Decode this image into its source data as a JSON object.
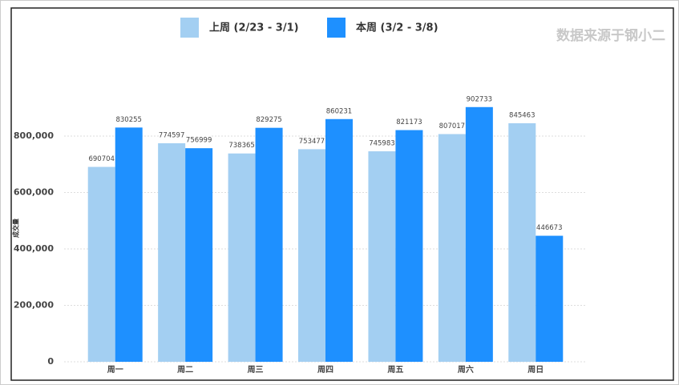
{
  "chart_data": {
    "type": "bar",
    "y_label": "成交量",
    "source": "数据来源于钢小二",
    "categories": [
      "周一",
      "周二",
      "周三",
      "周四",
      "周五",
      "周六",
      "周日"
    ],
    "series": [
      {
        "name": "上周 (2/23 - 3/1)",
        "color": "#a3cff2",
        "values": [
          690704,
          774597,
          738365,
          753477,
          745983,
          807017,
          845463
        ]
      },
      {
        "name": "本周 (3/2 - 3/8)",
        "color": "#1e90ff",
        "values": [
          830255,
          756999,
          829275,
          860231,
          821173,
          902733,
          446673
        ]
      }
    ],
    "ylim": [
      0,
      1000000
    ],
    "yticks": [
      {
        "value": 0,
        "label": "0"
      },
      {
        "value": 200000,
        "label": "200,000"
      },
      {
        "value": 400000,
        "label": "400,000"
      },
      {
        "value": 600000,
        "label": "600,000"
      },
      {
        "value": 800000,
        "label": "800,000"
      }
    ],
    "grid": true,
    "legend": "top"
  }
}
